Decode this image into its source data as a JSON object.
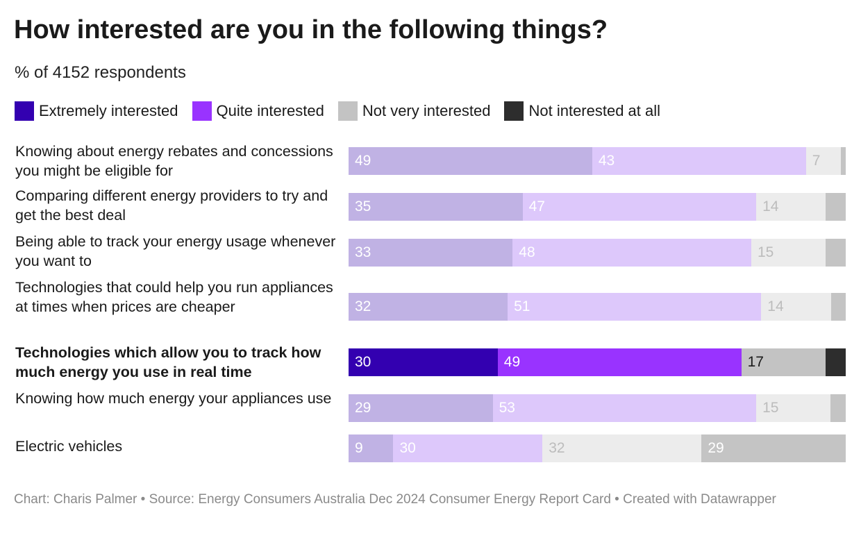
{
  "title": "How interested are you in the following things?",
  "subtitle": "% of 4152 respondents",
  "legend": [
    {
      "label": "Extremely interested",
      "color": "#3300b0"
    },
    {
      "label": "Quite interested",
      "color": "#9933ff"
    },
    {
      "label": "Not very interested",
      "color": "#c3c3c3"
    },
    {
      "label": "Not interested at all",
      "color": "#2d2d2d"
    }
  ],
  "muted_colors": [
    "#c0b2e4",
    "#ddc8fb",
    "#ececec",
    "#c4c4c4"
  ],
  "muted_label_colors": [
    "#ffffff",
    "#ffffff",
    "#bcbcbc",
    "#ffffff"
  ],
  "highlight_label_colors": [
    "#ffffff",
    "#ffffff",
    "#1a1a1a",
    "#ffffff"
  ],
  "chart_data": {
    "type": "bar",
    "orientation": "horizontal",
    "stacked": true,
    "unit": "% of 4152 respondents",
    "categories": [
      "Knowing about energy rebates and concessions you might be eligible for",
      "Comparing different energy providers to try and get the best deal",
      "Being able to track your energy usage whenever you want to",
      "Technologies that could help you run appliances at times when prices are cheaper",
      "Technologies which allow you to track how much energy you use in real time",
      "Knowing how much energy your appliances use",
      "Electric vehicles"
    ],
    "highlighted_category_index": 4,
    "series": [
      {
        "name": "Extremely interested",
        "values": [
          49,
          35,
          33,
          32,
          30,
          29,
          9
        ]
      },
      {
        "name": "Quite interested",
        "values": [
          43,
          47,
          48,
          51,
          49,
          53,
          30
        ]
      },
      {
        "name": "Not very interested",
        "values": [
          7,
          14,
          15,
          14,
          17,
          15,
          32
        ]
      },
      {
        "name": "Not interested at all",
        "values": [
          1,
          4,
          4,
          3,
          4,
          3,
          29
        ]
      }
    ],
    "data_labels": [
      [
        "49",
        "43",
        "7",
        ""
      ],
      [
        "35",
        "47",
        "14",
        ""
      ],
      [
        "33",
        "48",
        "15",
        ""
      ],
      [
        "32",
        "51",
        "14",
        ""
      ],
      [
        "30",
        "49",
        "17",
        ""
      ],
      [
        "29",
        "53",
        "15",
        ""
      ],
      [
        "9",
        "30",
        "32",
        "29"
      ]
    ],
    "xlim": [
      0,
      100
    ]
  },
  "footer": "Chart: Charis Palmer • Source: Energy Consumers Australia Dec 2024 Consumer Energy Report Card • Created with Datawrapper"
}
